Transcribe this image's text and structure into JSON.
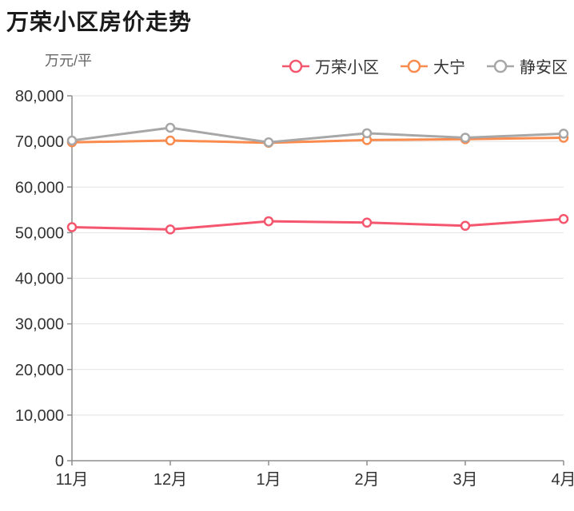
{
  "chart_data": {
    "type": "line",
    "title": "万荣小区房价走势",
    "unit_label": "万元/平",
    "x_categories": [
      "11月",
      "12月",
      "1月",
      "2月",
      "3月",
      "4月"
    ],
    "y_ticks": [
      0,
      10000,
      20000,
      30000,
      40000,
      50000,
      60000,
      70000,
      80000
    ],
    "ylim": [
      0,
      80000
    ],
    "grid": true,
    "legend_position": "top-right",
    "series": [
      {
        "name": "万荣小区",
        "color": "#f4566e",
        "values": [
          51200,
          50700,
          52500,
          52200,
          51500,
          53000
        ]
      },
      {
        "name": "大宁",
        "color": "#f98b4e",
        "values": [
          69800,
          70200,
          69700,
          70300,
          70500,
          70800
        ]
      },
      {
        "name": "静安区",
        "color": "#a7a7a7",
        "values": [
          70200,
          73000,
          69800,
          71800,
          70800,
          71700
        ]
      }
    ],
    "colors": {
      "grid_line": "#e2e2e2",
      "axis_line": "#8d8d8d",
      "tick_label": "#333333",
      "marker_fill": "#ffffff"
    }
  }
}
